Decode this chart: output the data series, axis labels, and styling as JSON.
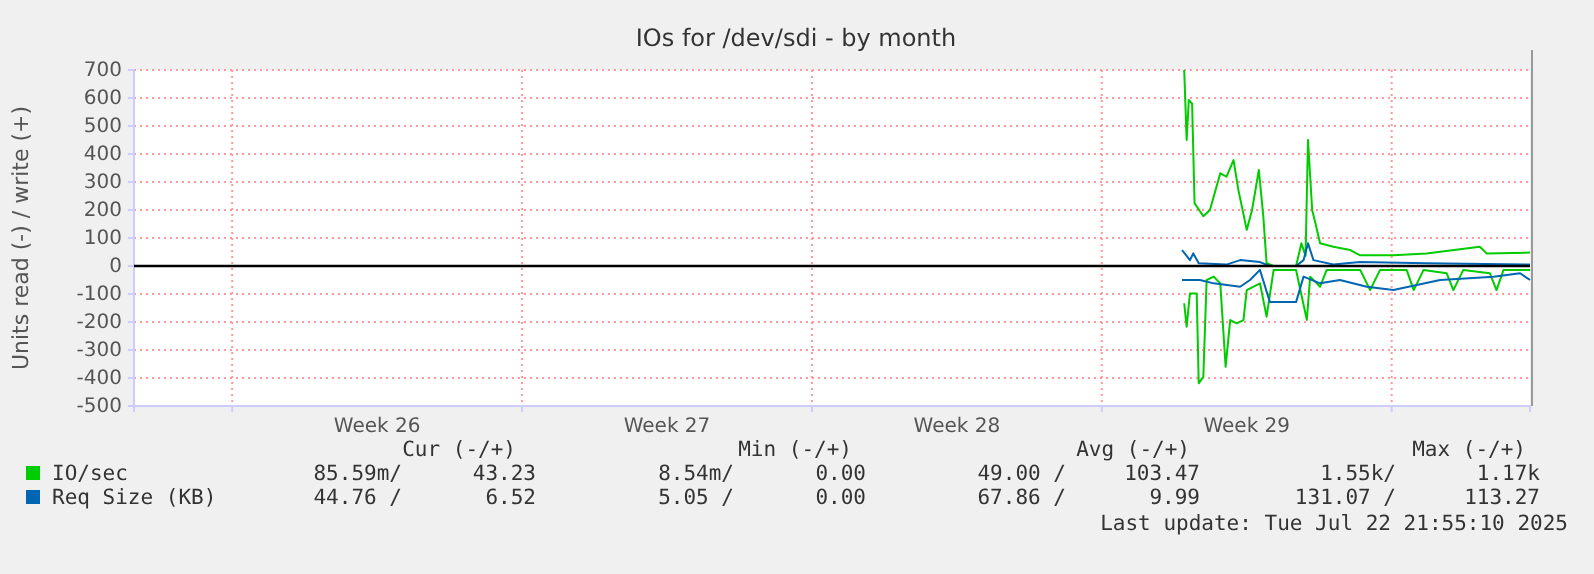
{
  "chart_data": {
    "type": "line",
    "title": "IOs for /dev/sdi - by month",
    "ylabel": "Units read (-) / write (+)",
    "xlim": [
      "2025-06-20T15:05",
      "2025-07-24T08:10"
    ],
    "ylim": [
      -500,
      700
    ],
    "yticks": [
      -500,
      -400,
      -300,
      -200,
      -100,
      0,
      100,
      200,
      300,
      400,
      500,
      600,
      700
    ],
    "xticks": [
      {
        "value": "2025-06-23",
        "label": null
      },
      {
        "value": "2025-06-26T12:00",
        "label": "Week 26"
      },
      {
        "value": "2025-06-30",
        "label": null
      },
      {
        "value": "2025-07-03T12:00",
        "label": "Week 27"
      },
      {
        "value": "2025-07-07",
        "label": null
      },
      {
        "value": "2025-07-10T12:00",
        "label": "Week 28"
      },
      {
        "value": "2025-07-14",
        "label": null
      },
      {
        "value": "2025-07-17T12:00",
        "label": "Week 29"
      },
      {
        "value": "2025-07-21",
        "label": null
      }
    ],
    "grid": true,
    "legend": "bottom",
    "line_style": "solid",
    "ref_lines": [
      {
        "axis": "y",
        "value": 0,
        "color": "#000000"
      }
    ],
    "series": [
      {
        "name": "IO/sec",
        "color": "#00cc00",
        "x": [
          "2025-07-15T23:45",
          "2025-07-16T01:10",
          "2025-07-16T02:25",
          "2025-07-16T04:20",
          "2025-07-16T05:45",
          "2025-07-16T10:50",
          "2025-07-16T14:40",
          "2025-07-16T20:40",
          "2025-07-17T00:15",
          "2025-07-17T04:20",
          "2025-07-17T07:10",
          "2025-07-17T12:00",
          "2025-07-17T15:05",
          "2025-07-17T19:00",
          "2025-07-17T21:35",
          "2025-07-17T23:30",
          "2025-07-18T03:35",
          "2025-07-18T16:35",
          "2025-07-18T19:40",
          "2025-07-18T22:05",
          "2025-07-18T23:30",
          "2025-07-19T01:55",
          "2025-07-19T03:50",
          "2025-07-19T06:30",
          "2025-07-19T14:10",
          "2025-07-20T00:00",
          "2025-07-20T05:45",
          "2025-07-21T01:00",
          "2025-07-21T20:10",
          "2025-07-23T03:05",
          "2025-07-23T07:00",
          "2025-07-24T08:10"
        ],
        "values": [
          700,
          450,
          593,
          580,
          224,
          178,
          200,
          331,
          319,
          378,
          271,
          129,
          200,
          343,
          178,
          10,
          0,
          0,
          81,
          36,
          450,
          200,
          152,
          81,
          69,
          57,
          38,
          38,
          45,
          69,
          45,
          48
        ]
      },
      {
        "color": "#00cc00",
        "x": [
          "2025-07-15T23:45",
          "2025-07-16T01:10",
          "2025-07-16T03:05",
          "2025-07-16T07:00",
          "2025-07-16T08:10",
          "2025-07-16T10:50",
          "2025-07-16T12:45",
          "2025-07-16T16:50",
          "2025-07-16T20:40",
          "2025-07-16T23:45",
          "2025-07-17T02:25",
          "2025-07-17T06:15",
          "2025-07-17T10:05",
          "2025-07-17T12:00",
          "2025-07-17T19:40",
          "2025-07-17T23:30",
          "2025-07-18T03:35",
          "2025-07-18T16:35",
          "2025-07-18T22:50",
          "2025-07-19T00:45",
          "2025-07-19T06:30",
          "2025-07-19T10:20",
          "2025-07-20T05:45",
          "2025-07-20T11:30",
          "2025-07-20T17:15",
          "2025-07-21T08:40",
          "2025-07-21T12:45",
          "2025-07-21T18:30",
          "2025-07-22T07:55",
          "2025-07-22T11:45",
          "2025-07-22T17:30",
          "2025-07-23T08:55",
          "2025-07-23T12:45",
          "2025-07-23T16:50",
          "2025-07-24T08:10"
        ],
        "values": [
          -133,
          -217,
          -98,
          -98,
          -419,
          -395,
          -50,
          -38,
          -62,
          -360,
          -193,
          -205,
          -193,
          -86,
          -62,
          -181,
          -14,
          -14,
          -193,
          -38,
          -74,
          -14,
          -14,
          -86,
          -14,
          -14,
          -86,
          -14,
          -26,
          -86,
          -14,
          -26,
          -86,
          -14,
          -14
        ]
      },
      {
        "name": "Req Size (KB)",
        "color": "#0066b3",
        "x": [
          "2025-07-15T22:30",
          "2025-07-16T03:05",
          "2025-07-16T05:00",
          "2025-07-16T08:10",
          "2025-07-17T00:15",
          "2025-07-17T08:10",
          "2025-07-17T19:40",
          "2025-07-18T01:25",
          "2025-07-18T16:35",
          "2025-07-18T20:55",
          "2025-07-18T23:30",
          "2025-07-19T02:40",
          "2025-07-19T14:10",
          "2025-07-20T05:45",
          "2025-07-21T20:10",
          "2025-07-24T08:10"
        ],
        "values": [
          57,
          21,
          45,
          10,
          5,
          21,
          14,
          0,
          0,
          21,
          81,
          21,
          5,
          14,
          10,
          5
        ]
      },
      {
        "color": "#0066b3",
        "x": [
          "2025-07-15T22:30",
          "2025-07-16T08:55",
          "2025-07-16T16:50",
          "2025-07-17T08:10",
          "2025-07-17T13:55",
          "2025-07-17T19:40",
          "2025-07-18T01:25",
          "2025-07-18T16:35",
          "2025-07-18T20:55",
          "2025-07-19T06:30",
          "2025-07-19T18:00",
          "2025-07-20T09:35",
          "2025-07-21T01:00",
          "2025-07-22T04:05",
          "2025-07-23T11:00",
          "2025-07-24T02:25",
          "2025-07-24T08:10"
        ],
        "values": [
          -50,
          -50,
          -62,
          -74,
          -50,
          -14,
          -129,
          -129,
          -38,
          -62,
          -50,
          -74,
          -86,
          -50,
          -38,
          -26,
          -50
        ]
      }
    ],
    "annotations": [
      "Cur (-/+)",
      "Min (-/+)",
      "Avg (-/+)",
      "Max (-/+)",
      "85.59m/",
      "43.23",
      "8.54m/",
      "0.00",
      "49.00 /",
      "103.47",
      "1.55k/",
      "1.17k",
      "44.76 /",
      "6.52",
      "5.05 /",
      "0.00",
      "67.86 /",
      "9.99",
      "131.07 /",
      "113.27",
      "Last update: Tue Jul 22 21:55:10 2025"
    ]
  }
}
